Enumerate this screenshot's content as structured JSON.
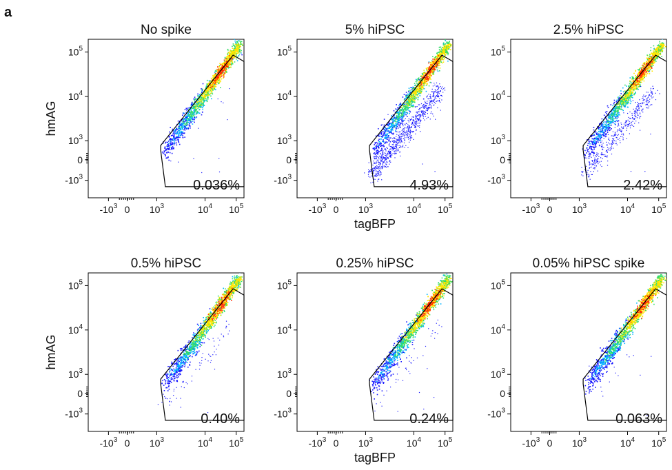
{
  "figure": {
    "panel_letter": "a"
  },
  "colors": {
    "density_low": "#1a1aff",
    "density_mid_low": "#00b4ff",
    "density_mid": "#33dd66",
    "density_mid_high": "#ffe600",
    "density_high": "#ff2a00",
    "gate_stroke": "#000000"
  },
  "chart_data": [
    {
      "type": "scatter",
      "title": "No spike",
      "xlabel": "",
      "ylabel": "hmAG",
      "x_scale": "biexponential",
      "y_scale": "biexponential",
      "x_ticks": [
        {
          "base": "-10",
          "exp": "3"
        },
        {
          "base": "0",
          "exp": ""
        },
        {
          "base": "10",
          "exp": "3"
        },
        {
          "base": "10",
          "exp": "4"
        },
        {
          "base": "10",
          "exp": "5"
        }
      ],
      "y_ticks": [
        {
          "base": "10",
          "exp": "5"
        },
        {
          "base": "10",
          "exp": "4"
        },
        {
          "base": "10",
          "exp": "3"
        },
        {
          "base": "0",
          "exp": ""
        },
        {
          "base": "-10",
          "exp": "3"
        }
      ],
      "gate_percentage": "0.036%",
      "gate_fraction": 0.00036
    },
    {
      "type": "scatter",
      "title": "5% hiPSC",
      "xlabel": "tagBFP",
      "ylabel": "",
      "x_scale": "biexponential",
      "y_scale": "biexponential",
      "x_ticks": [
        {
          "base": "-10",
          "exp": "3"
        },
        {
          "base": "0",
          "exp": ""
        },
        {
          "base": "10",
          "exp": "3"
        },
        {
          "base": "10",
          "exp": "4"
        },
        {
          "base": "10",
          "exp": "5"
        }
      ],
      "y_ticks": [
        {
          "base": "10",
          "exp": "5"
        },
        {
          "base": "10",
          "exp": "4"
        },
        {
          "base": "10",
          "exp": "3"
        },
        {
          "base": "0",
          "exp": ""
        },
        {
          "base": "-10",
          "exp": "3"
        }
      ],
      "gate_percentage": "4.93%",
      "gate_fraction": 0.0493
    },
    {
      "type": "scatter",
      "title": "2.5% hiPSC",
      "xlabel": "",
      "ylabel": "",
      "x_scale": "biexponential",
      "y_scale": "biexponential",
      "x_ticks": [
        {
          "base": "-10",
          "exp": "3"
        },
        {
          "base": "0",
          "exp": ""
        },
        {
          "base": "10",
          "exp": "3"
        },
        {
          "base": "10",
          "exp": "4"
        },
        {
          "base": "10",
          "exp": "5"
        }
      ],
      "y_ticks": [
        {
          "base": "10",
          "exp": "5"
        },
        {
          "base": "10",
          "exp": "4"
        },
        {
          "base": "10",
          "exp": "3"
        },
        {
          "base": "0",
          "exp": ""
        },
        {
          "base": "-10",
          "exp": "3"
        }
      ],
      "gate_percentage": "2.42%",
      "gate_fraction": 0.0242
    },
    {
      "type": "scatter",
      "title": "0.5% hiPSC",
      "xlabel": "",
      "ylabel": "hmAG",
      "x_scale": "biexponential",
      "y_scale": "biexponential",
      "x_ticks": [
        {
          "base": "-10",
          "exp": "3"
        },
        {
          "base": "0",
          "exp": ""
        },
        {
          "base": "10",
          "exp": "3"
        },
        {
          "base": "10",
          "exp": "4"
        },
        {
          "base": "10",
          "exp": "5"
        }
      ],
      "y_ticks": [
        {
          "base": "10",
          "exp": "5"
        },
        {
          "base": "10",
          "exp": "4"
        },
        {
          "base": "10",
          "exp": "3"
        },
        {
          "base": "0",
          "exp": ""
        },
        {
          "base": "-10",
          "exp": "3"
        }
      ],
      "gate_percentage": "0.40%",
      "gate_fraction": 0.004
    },
    {
      "type": "scatter",
      "title": "0.25% hiPSC",
      "xlabel": "tagBFP",
      "ylabel": "",
      "x_scale": "biexponential",
      "y_scale": "biexponential",
      "x_ticks": [
        {
          "base": "-10",
          "exp": "3"
        },
        {
          "base": "0",
          "exp": ""
        },
        {
          "base": "10",
          "exp": "3"
        },
        {
          "base": "10",
          "exp": "4"
        },
        {
          "base": "10",
          "exp": "5"
        }
      ],
      "y_ticks": [
        {
          "base": "10",
          "exp": "5"
        },
        {
          "base": "10",
          "exp": "4"
        },
        {
          "base": "10",
          "exp": "3"
        },
        {
          "base": "0",
          "exp": ""
        },
        {
          "base": "-10",
          "exp": "3"
        }
      ],
      "gate_percentage": "0.24%",
      "gate_fraction": 0.0024
    },
    {
      "type": "scatter",
      "title": "0.05% hiPSC spike",
      "xlabel": "",
      "ylabel": "",
      "x_scale": "biexponential",
      "y_scale": "biexponential",
      "x_ticks": [
        {
          "base": "-10",
          "exp": "3"
        },
        {
          "base": "0",
          "exp": ""
        },
        {
          "base": "10",
          "exp": "3"
        },
        {
          "base": "10",
          "exp": "4"
        },
        {
          "base": "10",
          "exp": "5"
        }
      ],
      "y_ticks": [
        {
          "base": "10",
          "exp": "5"
        },
        {
          "base": "10",
          "exp": "4"
        },
        {
          "base": "10",
          "exp": "3"
        },
        {
          "base": "0",
          "exp": ""
        },
        {
          "base": "-10",
          "exp": "3"
        }
      ],
      "gate_percentage": "0.063%",
      "gate_fraction": 0.00063
    }
  ]
}
